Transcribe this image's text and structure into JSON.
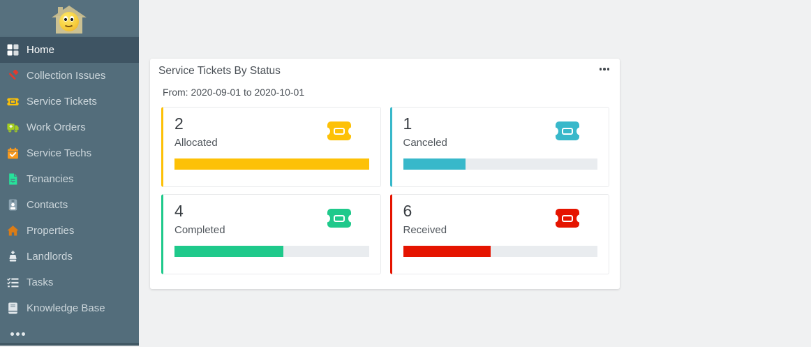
{
  "sidebar": {
    "logo": {
      "icon": "smiley-house-logo"
    },
    "items": [
      {
        "label": "Home",
        "icon": "grid-icon",
        "color": "#ffffff",
        "active": true
      },
      {
        "label": "Collection Issues",
        "icon": "gavel-icon",
        "color": "#e23a2e",
        "active": false
      },
      {
        "label": "Service Tickets",
        "icon": "ticket-icon",
        "color": "#fdc107",
        "active": false
      },
      {
        "label": "Work Orders",
        "icon": "truck-icon",
        "color": "#a5ce20",
        "active": false
      },
      {
        "label": "Service Techs",
        "icon": "calendar-check-icon",
        "color": "#f8991d",
        "active": false
      },
      {
        "label": "Tenancies",
        "icon": "file-contract-icon",
        "color": "#27e29b",
        "active": false
      },
      {
        "label": "Contacts",
        "icon": "id-badge-icon",
        "color": "#8da4b2",
        "active": false
      },
      {
        "label": "Properties",
        "icon": "home-icon",
        "color": "#dc7c16",
        "active": false
      },
      {
        "label": "Landlords",
        "icon": "chess-king-icon",
        "color": "#e6ebee",
        "active": false
      },
      {
        "label": "Tasks",
        "icon": "tasks-icon",
        "color": "#e6ebee",
        "active": false
      },
      {
        "label": "Knowledge Base",
        "icon": "book-icon",
        "color": "#e0e6ea",
        "active": false
      }
    ],
    "more": {
      "icon": "ellipsis-h-icon"
    }
  },
  "panel": {
    "title": "Service Tickets By Status",
    "date_range": "From: 2020-09-01 to 2020-10-01",
    "menu": {
      "icon": "ellipsis-h-icon"
    }
  },
  "stats": [
    {
      "value": "2",
      "label": "Allocated",
      "icon": "ticket-icon",
      "color": "#fdc107",
      "bar_percent": 100
    },
    {
      "value": "1",
      "label": "Canceled",
      "icon": "ticket-icon",
      "color": "#38b8ca",
      "bar_percent": 32
    },
    {
      "value": "4",
      "label": "Completed",
      "icon": "ticket-icon",
      "color": "#1fc98b",
      "bar_percent": 56
    },
    {
      "value": "6",
      "label": "Received",
      "icon": "ticket-icon",
      "color": "#e51400",
      "bar_percent": 45
    }
  ],
  "colors": {
    "sidebar_bg": "#536d7b",
    "sidebar_header_bg": "#56707e",
    "sidebar_active_bg": "#3e5463",
    "main_bg": "#f0f1f2",
    "progress_track": "#e9ecef"
  }
}
